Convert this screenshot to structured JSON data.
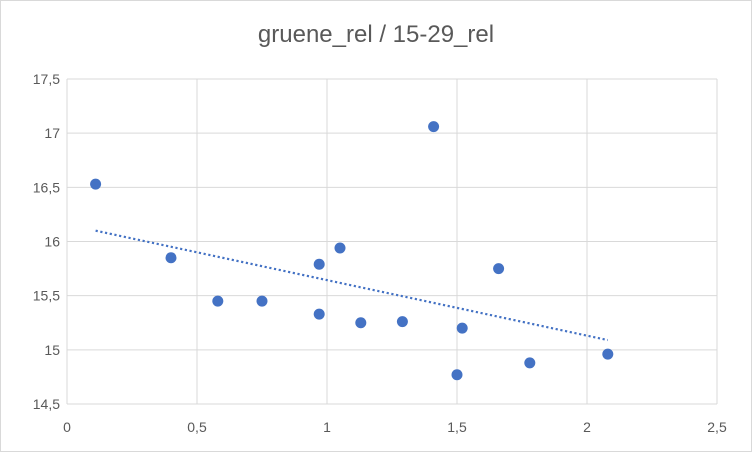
{
  "chart_data": {
    "type": "scatter",
    "title": "gruene_rel  / 15-29_rel",
    "xlim": [
      0,
      2.5
    ],
    "ylim": [
      14.5,
      17.5
    ],
    "x_ticks": [
      0,
      0.5,
      1,
      1.5,
      2,
      2.5
    ],
    "x_tick_labels": [
      "0",
      "0,5",
      "1",
      "1,5",
      "2",
      "2,5"
    ],
    "y_ticks": [
      14.5,
      15,
      15.5,
      16,
      16.5,
      17,
      17.5
    ],
    "y_tick_labels": [
      "14,5",
      "15",
      "15,5",
      "16",
      "16,5",
      "17",
      "17,5"
    ],
    "grid": true,
    "legend": "none",
    "series": [
      {
        "points": [
          {
            "x": 0.11,
            "y": 16.53
          },
          {
            "x": 0.4,
            "y": 15.85
          },
          {
            "x": 0.58,
            "y": 15.45
          },
          {
            "x": 0.75,
            "y": 15.45
          },
          {
            "x": 0.97,
            "y": 15.33
          },
          {
            "x": 0.97,
            "y": 15.79
          },
          {
            "x": 1.05,
            "y": 15.94
          },
          {
            "x": 1.13,
            "y": 15.25
          },
          {
            "x": 1.29,
            "y": 15.26
          },
          {
            "x": 1.41,
            "y": 17.06
          },
          {
            "x": 1.5,
            "y": 14.77
          },
          {
            "x": 1.52,
            "y": 15.2
          },
          {
            "x": 1.66,
            "y": 15.75
          },
          {
            "x": 1.78,
            "y": 14.88
          },
          {
            "x": 2.08,
            "y": 14.96
          }
        ]
      }
    ],
    "trendline": {
      "type": "linear",
      "x": [
        0.11,
        2.08
      ],
      "y": [
        16.1,
        15.09
      ]
    },
    "colors": {
      "marker": "#4472c4",
      "trendline": "#4472c4",
      "grid": "#d9d9d9",
      "text": "#595959"
    }
  }
}
